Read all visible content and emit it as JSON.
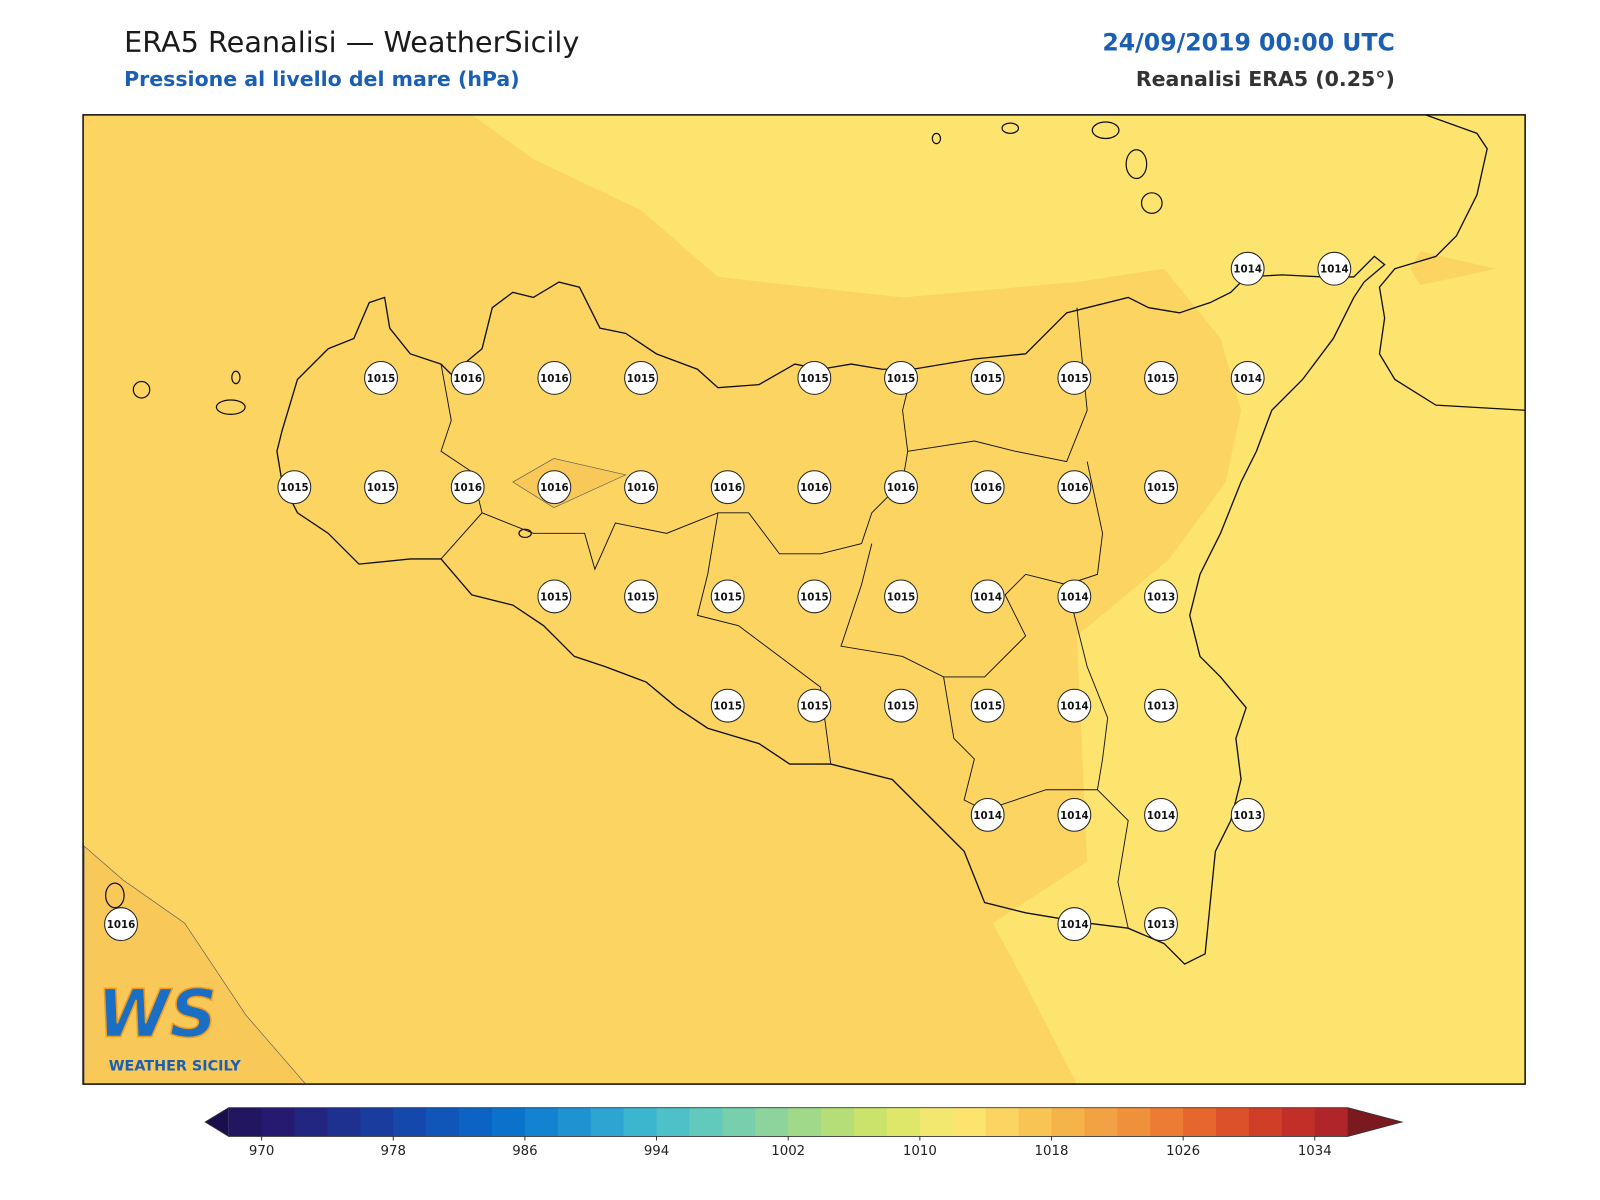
{
  "header": {
    "title": "ERA5 Reanalisi — WeatherSicily",
    "subtitle": "Pressione al livello del mare (hPa)",
    "date": "24/09/2019 00:00 UTC",
    "source": "Reanalisi ERA5 (0.25°)"
  },
  "logo": {
    "letters": "WS",
    "name": "WEATHER SICILY"
  },
  "stations": [
    1014,
    1014,
    1015,
    1016,
    1016,
    1015,
    1015,
    1015,
    1015,
    1015,
    1015,
    1014,
    1015,
    1015,
    1016,
    1016,
    1016,
    1016,
    1016,
    1016,
    1016,
    1016,
    1015,
    1015,
    1015,
    1015,
    1015,
    1015,
    1014,
    1014,
    1013,
    1015,
    1015,
    1015,
    1015,
    1014,
    1013,
    1014,
    1014,
    1014,
    1013,
    1016,
    1014,
    1013
  ],
  "colorbar": {
    "lim": [
      968,
      1036
    ],
    "ticks": [
      970,
      978,
      986,
      994,
      1002,
      1010,
      1018,
      1026,
      1034
    ],
    "colors": [
      "#231660",
      "#251a70",
      "#232680",
      "#1e3190",
      "#1a3c9e",
      "#1548ab",
      "#1055b8",
      "#0c63c4",
      "#0b72cc",
      "#1382d0",
      "#1f93d2",
      "#2da4d2",
      "#3cb5cf",
      "#4ec1c8",
      "#62c9bd",
      "#78cfae",
      "#8dd49c",
      "#a1d98a",
      "#b6de78",
      "#cbe36a",
      "#dfe76a",
      "#f2e870",
      "#fde46e",
      "#fcd462",
      "#f8c454",
      "#f5b44a",
      "#f2a242",
      "#ef903a",
      "#ec7c34",
      "#e6662e",
      "#dc512a",
      "#d03e28",
      "#c22f28",
      "#b02529"
    ],
    "under": "#1a0f4a",
    "over": "#7a1a1e"
  }
}
